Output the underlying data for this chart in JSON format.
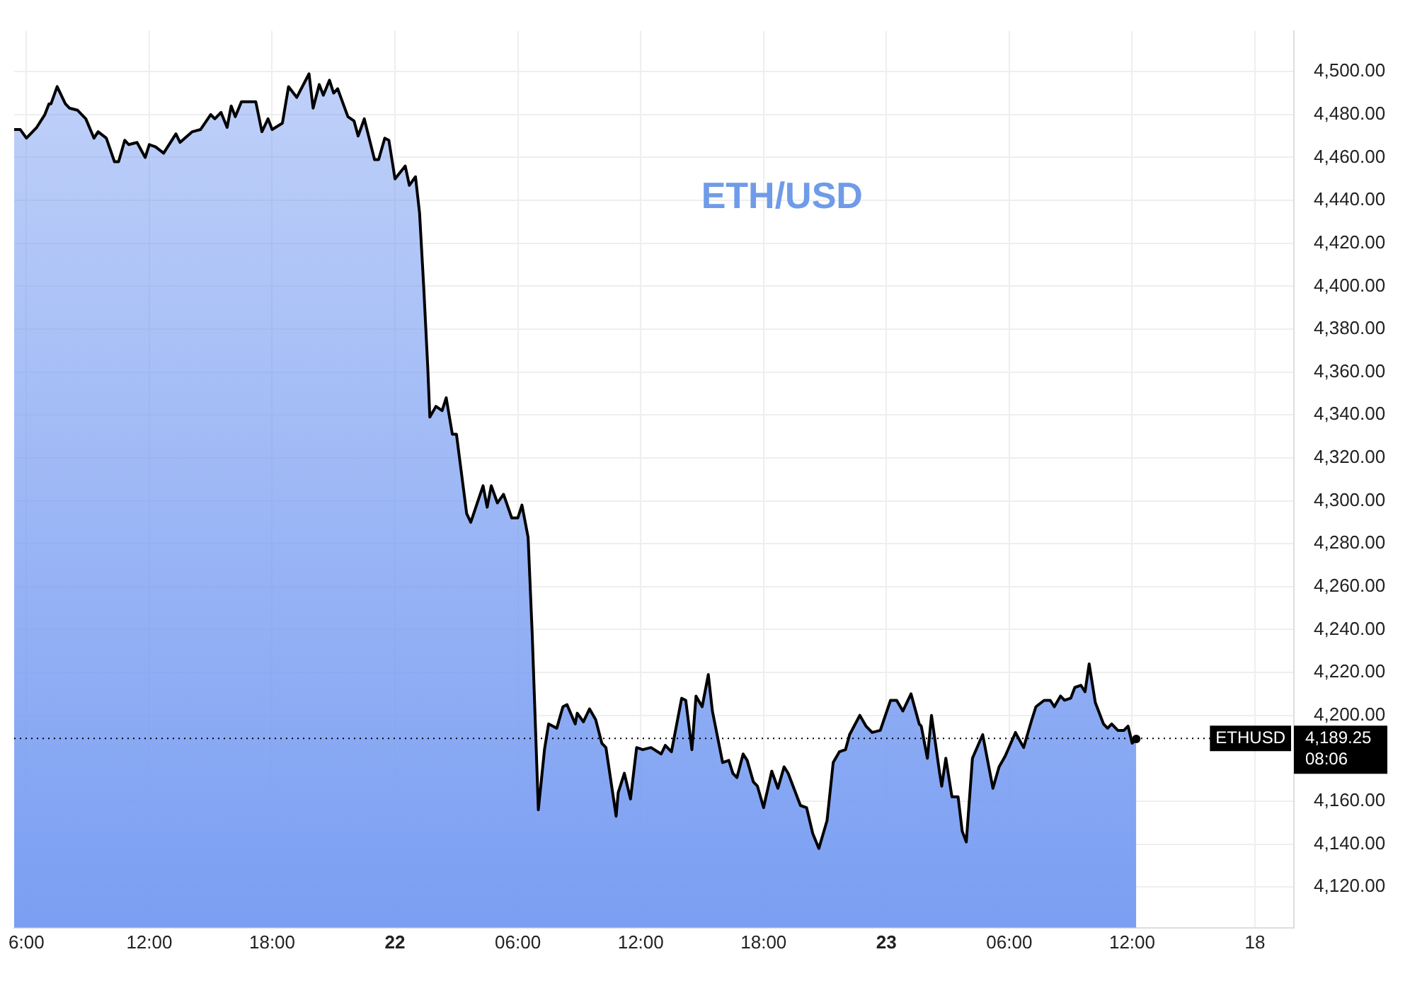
{
  "chart_data": {
    "type": "area",
    "title": "ETH/USD",
    "series": [
      {
        "color": "#7a9ef2",
        "x": [
          "--08-21T05:24",
          "--08-21T05:42",
          "--08-21T06:00",
          "--08-21T06:30",
          "--08-21T06:54",
          "--08-21T07:06",
          "--08-21T07:12",
          "--08-21T07:30",
          "--08-21T07:54",
          "--08-21T08:06",
          "--08-21T08:30",
          "--08-21T08:54",
          "--08-21T09:18",
          "--08-21T09:30",
          "--08-21T09:54",
          "--08-21T10:18",
          "--08-21T10:30",
          "--08-21T10:48",
          "--08-21T11:00",
          "--08-21T11:24",
          "--08-21T11:48",
          "--08-21T12:00",
          "--08-21T12:18",
          "--08-21T12:42",
          "--08-21T13:18",
          "--08-21T13:30",
          "--08-21T14:06",
          "--08-21T14:30",
          "--08-21T15:00",
          "--08-21T15:12",
          "--08-21T15:30",
          "--08-21T15:48",
          "--08-21T16:00",
          "--08-21T16:12",
          "--08-21T16:30",
          "--08-21T17:12",
          "--08-21T17:30",
          "--08-21T17:48",
          "--08-21T18:00",
          "--08-21T18:30",
          "--08-21T18:48",
          "--08-21T19:12",
          "--08-21T19:48",
          "--08-21T20:00",
          "--08-21T20:18",
          "--08-21T20:30",
          "--08-21T20:48",
          "--08-21T21:00",
          "--08-21T21:12",
          "--08-21T21:42",
          "--08-21T22:00",
          "--08-21T22:12",
          "--08-21T22:30",
          "--08-21T23:00",
          "--08-21T23:12",
          "--08-21T23:30",
          "--08-21T23:42",
          "--08-22T00:00",
          "--08-22T00:30",
          "--08-22T00:42",
          "--08-22T01:00",
          "--08-22T01:12",
          "--08-22T01:24",
          "--08-22T01:36",
          "--08-22T01:42",
          "--08-22T02:00",
          "--08-22T02:18",
          "--08-22T02:30",
          "--08-22T02:48",
          "--08-22T03:00",
          "--08-22T03:30",
          "--08-22T03:42",
          "--08-22T04:18",
          "--08-22T04:30",
          "--08-22T04:42",
          "--08-22T05:00",
          "--08-22T05:18",
          "--08-22T05:42",
          "--08-22T06:00",
          "--08-22T06:12",
          "--08-22T06:30",
          "--08-22T06:42",
          "--08-22T07:00",
          "--08-22T07:18",
          "--08-22T07:30",
          "--08-22T07:54",
          "--08-22T08:12",
          "--08-22T08:24",
          "--08-22T08:48",
          "--08-22T08:54",
          "--08-22T09:12",
          "--08-22T09:30",
          "--08-22T09:48",
          "--08-22T10:06",
          "--08-22T10:18",
          "--08-22T10:48",
          "--08-22T10:54",
          "--08-22T11:12",
          "--08-22T11:30",
          "--08-22T11:48",
          "--08-22T12:06",
          "--08-22T12:30",
          "--08-22T13:00",
          "--08-22T13:12",
          "--08-22T13:30",
          "--08-22T14:00",
          "--08-22T14:12",
          "--08-22T14:30",
          "--08-22T14:42",
          "--08-22T15:00",
          "--08-22T15:18",
          "--08-22T15:30",
          "--08-22T16:00",
          "--08-22T16:18",
          "--08-22T16:30",
          "--08-22T16:42",
          "--08-22T17:00",
          "--08-22T17:12",
          "--08-22T17:30",
          "--08-22T17:42",
          "--08-22T18:00",
          "--08-22T18:24",
          "--08-22T18:42",
          "--08-22T19:00",
          "--08-22T19:12",
          "--08-22T19:48",
          "--08-22T20:06",
          "--08-22T20:24",
          "--08-22T20:42",
          "--08-22T21:06",
          "--08-22T21:24",
          "--08-22T21:42",
          "--08-22T22:00",
          "--08-22T22:12",
          "--08-22T22:42",
          "--08-22T23:00",
          "--08-22T23:18",
          "--08-22T23:42",
          "--08-23T00:12",
          "--08-23T00:30",
          "--08-23T00:48",
          "--08-23T01:12",
          "--08-23T01:36",
          "--08-23T01:42",
          "--08-23T02:00",
          "--08-23T02:12",
          "--08-23T02:36",
          "--08-23T02:42",
          "--08-23T02:54",
          "--08-23T03:12",
          "--08-23T03:30",
          "--08-23T03:42",
          "--08-23T03:54",
          "--08-23T04:12",
          "--08-23T04:42",
          "--08-23T05:12",
          "--08-23T05:30",
          "--08-23T05:48",
          "--08-23T06:18",
          "--08-23T06:42",
          "--08-23T07:06",
          "--08-23T07:18",
          "--08-23T07:42",
          "--08-23T08:00",
          "--08-23T08:12",
          "--08-23T08:30",
          "--08-23T08:42",
          "--08-23T09:00",
          "--08-23T09:12",
          "--08-23T09:30",
          "--08-23T09:42",
          "--08-23T09:54",
          "--08-23T10:12",
          "--08-23T10:36",
          "--08-23T10:48",
          "--08-23T11:00",
          "--08-23T11:18",
          "--08-23T11:36",
          "--08-23T11:48",
          "--08-23T12:00",
          "--08-23T12:12"
        ],
        "values": [
          4473,
          4473,
          4469,
          4474,
          4480,
          4485,
          4485,
          4493,
          4485,
          4483,
          4482,
          4478,
          4469,
          4472,
          4469,
          4458,
          4458,
          4468,
          4466,
          4467,
          4460,
          4466,
          4465,
          4462,
          4471,
          4467,
          4472,
          4473,
          4480,
          4478,
          4481,
          4474,
          4484,
          4479,
          4486,
          4486,
          4472,
          4478,
          4473,
          4476,
          4493,
          4488,
          4499,
          4483,
          4494,
          4489,
          4496,
          4490,
          4492,
          4479,
          4477,
          4470,
          4478,
          4459,
          4459,
          4469,
          4468,
          4450,
          4456,
          4447,
          4451,
          4434,
          4400,
          4362,
          4339,
          4344,
          4342,
          4348,
          4331,
          4331,
          4294,
          4290,
          4307,
          4297,
          4307,
          4299,
          4303,
          4292,
          4292,
          4298,
          4283,
          4238,
          4156,
          4184,
          4196,
          4194,
          4204,
          4205,
          4196,
          4201,
          4197,
          4203,
          4198,
          4187,
          4185,
          4153,
          4164,
          4173,
          4161,
          4185,
          4184,
          4185,
          4182,
          4186,
          4183,
          4208,
          4207,
          4184,
          4209,
          4204,
          4219,
          4202,
          4178,
          4179,
          4173,
          4171,
          4182,
          4179,
          4169,
          4167,
          4157,
          4174,
          4166,
          4176,
          4173,
          4158,
          4157,
          4145,
          4138,
          4151,
          4178,
          4183,
          4184,
          4191,
          4200,
          4195,
          4192,
          4193,
          4207,
          4207,
          4202,
          4210,
          4196,
          4195,
          4180,
          4200,
          4173,
          4167,
          4180,
          4162,
          4162,
          4146,
          4141,
          4180,
          4191,
          4166,
          4176,
          4181,
          4192,
          4185,
          4198,
          4204,
          4207,
          4207,
          4204,
          4209,
          4207,
          4208,
          4213,
          4214,
          4211,
          4224,
          4206,
          4196,
          4194,
          4196,
          4193,
          4193,
          4195,
          4187,
          4189
        ]
      }
    ],
    "xlim": [
      "--08-21T05:24",
      "--08-23T19:54"
    ],
    "xticks": [
      {
        "value": "--08-21T06:00",
        "label": "6:00"
      },
      {
        "value": "--08-21T12:00",
        "label": "12:00"
      },
      {
        "value": "--08-21T18:00",
        "label": "18:00"
      },
      {
        "value": "--08-22",
        "label": "22"
      },
      {
        "value": "--08-22T06:00",
        "label": "06:00"
      },
      {
        "value": "--08-22T12:00",
        "label": "12:00"
      },
      {
        "value": "--08-22T18:00",
        "label": "18:00"
      },
      {
        "value": "--08-23",
        "label": "23"
      },
      {
        "value": "--08-23T06:00",
        "label": "06:00"
      },
      {
        "value": "--08-23T12:00",
        "label": "12:00"
      },
      {
        "value": "--08-23T18:00",
        "label": "18"
      }
    ],
    "ylim": [
      4101,
      4519
    ],
    "yticks": [
      {
        "value": 4120,
        "label": "4,120.00"
      },
      {
        "value": 4140,
        "label": "4,140.00"
      },
      {
        "value": 4160,
        "label": "4,160.00"
      },
      {
        "value": 4200,
        "label": "4,200.00"
      },
      {
        "value": 4220,
        "label": "4,220.00"
      },
      {
        "value": 4240,
        "label": "4,240.00"
      },
      {
        "value": 4260,
        "label": "4,260.00"
      },
      {
        "value": 4280,
        "label": "4,280.00"
      },
      {
        "value": 4300,
        "label": "4,300.00"
      },
      {
        "value": 4320,
        "label": "4,320.00"
      },
      {
        "value": 4340,
        "label": "4,340.00"
      },
      {
        "value": 4360,
        "label": "4,360.00"
      },
      {
        "value": 4380,
        "label": "4,380.00"
      },
      {
        "value": 4400,
        "label": "4,400.00"
      },
      {
        "value": 4420,
        "label": "4,420.00"
      },
      {
        "value": 4440,
        "label": "4,440.00"
      },
      {
        "value": 4460,
        "label": "4,460.00"
      },
      {
        "value": 4480,
        "label": "4,480.00"
      },
      {
        "value": 4500,
        "label": "4,500.00"
      }
    ],
    "ref_lines": [
      {
        "axis": "y",
        "value": 4189.25,
        "label": "ETHUSD",
        "color": "#000000",
        "line_style": "dotted"
      }
    ],
    "annotations": [
      "4,189.25",
      "08:06"
    ],
    "grid": true,
    "legend": false,
    "marker": "none",
    "line_style": "solid"
  }
}
